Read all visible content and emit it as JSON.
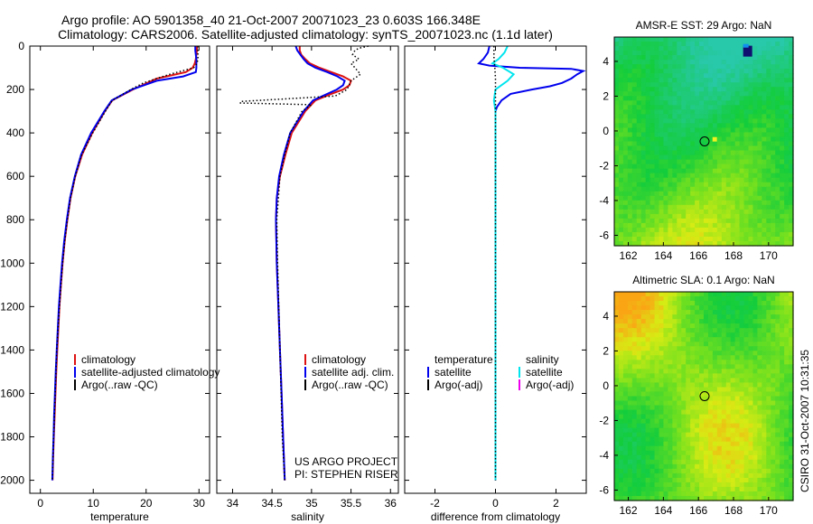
{
  "figure": {
    "title_line1": "Argo profile: AO 5901358_40 21-Oct-2007 20071023_23 0.603S 166.348E",
    "title_line2": "Climatology: CARS2006. Satellite-adjusted climatology: synTS_20071023.nc (1.1d later)",
    "credit_line1": "US ARGO PROJECT",
    "credit_line2": "PI: STEPHEN RISER",
    "timestamp": "CSIRO 31-Oct-2007 10:31:35",
    "colors": {
      "climatology": "#dd1111",
      "satellite": "#0000ee",
      "argo": "#000000",
      "satellite_cyan": "#00e5ee",
      "argo_adj_magenta": "#ee00ee"
    }
  },
  "chart_data": [
    {
      "type": "line",
      "xlabel": "temperature",
      "ylabel": "",
      "xlim": [
        -2,
        32
      ],
      "ylim": [
        2060,
        0
      ],
      "xticks": [
        "0",
        "10",
        "20",
        "30"
      ],
      "yticks": [
        "0",
        "200",
        "400",
        "600",
        "800",
        "1000",
        "1200",
        "1400",
        "1600",
        "1800",
        "2000"
      ],
      "legend": [
        "climatology",
        "satellite-adjusted climatology",
        "Argo(..raw -QC)"
      ],
      "series": [
        {
          "name": "climatology",
          "color": "#dd1111",
          "depth": [
            0,
            20,
            40,
            60,
            80,
            100,
            120,
            150,
            200,
            250,
            300,
            400,
            500,
            600,
            700,
            800,
            900,
            1000,
            1100,
            1200,
            1300,
            1400,
            1500,
            1600,
            1700,
            1800,
            1900,
            2000
          ],
          "values": [
            29.6,
            29.6,
            29.5,
            29.4,
            29.2,
            28.8,
            27.5,
            22,
            17.5,
            13.6,
            12.2,
            9.8,
            7.9,
            6.6,
            5.7,
            5.1,
            4.6,
            4.2,
            3.9,
            3.6,
            3.4,
            3.2,
            3.0,
            2.85,
            2.7,
            2.55,
            2.4,
            2.3
          ]
        },
        {
          "name": "satellite-adjusted climatology",
          "color": "#0000ee",
          "depth": [
            0,
            20,
            40,
            60,
            80,
            100,
            120,
            140,
            160,
            200,
            250,
            300,
            400,
            500,
            600,
            700,
            800,
            900,
            1000,
            1100,
            1200,
            1300,
            1400,
            1500,
            1600,
            1700,
            1800,
            1900,
            2000
          ],
          "values": [
            29.3,
            29.3,
            29.4,
            29.5,
            29.5,
            29.5,
            29.4,
            27,
            22,
            17.3,
            13.5,
            12.1,
            9.6,
            7.7,
            6.5,
            5.6,
            5.0,
            4.5,
            4.1,
            3.8,
            3.5,
            3.3,
            3.1,
            2.9,
            2.75,
            2.6,
            2.5,
            2.35,
            2.25
          ]
        },
        {
          "name": "Argo(..raw -QC)",
          "color": "#000000",
          "dotted": true,
          "depth": [
            0,
            20,
            40,
            60,
            80,
            100,
            130,
            170,
            200,
            250,
            300,
            400,
            500,
            600,
            700,
            800,
            900,
            1000,
            1200,
            1400,
            1600,
            1800,
            2000
          ],
          "values": [
            29.8,
            29.8,
            29.8,
            29.8,
            29.6,
            29.0,
            24.5,
            19.5,
            17.1,
            13.6,
            12.3,
            9.9,
            7.8,
            6.6,
            5.7,
            5.1,
            4.6,
            4.2,
            3.6,
            3.1,
            2.8,
            2.5,
            2.25
          ]
        }
      ]
    },
    {
      "type": "line",
      "xlabel": "salinity",
      "ylabel": "",
      "xlim": [
        33.8,
        36.1
      ],
      "ylim": [
        2060,
        0
      ],
      "xticks": [
        "34",
        "34.5",
        "35",
        "35.5",
        "36"
      ],
      "legend": [
        "climatology",
        "satellite adj. clim.",
        "Argo(..raw -QC)"
      ],
      "series": [
        {
          "name": "climatology",
          "color": "#dd1111",
          "depth": [
            0,
            20,
            40,
            60,
            80,
            100,
            120,
            140,
            160,
            180,
            200,
            220,
            250,
            300,
            400,
            500,
            600,
            700,
            800,
            1000,
            1200,
            1400,
            1600,
            1800,
            2000
          ],
          "values": [
            34.85,
            34.85,
            34.87,
            34.92,
            34.98,
            35.1,
            35.25,
            35.4,
            35.5,
            35.48,
            35.4,
            35.25,
            35.05,
            34.92,
            34.75,
            34.67,
            34.6,
            34.56,
            34.55,
            34.56,
            34.58,
            34.6,
            34.62,
            34.64,
            34.66
          ]
        },
        {
          "name": "satellite adj. clim.",
          "color": "#0000ee",
          "depth": [
            0,
            20,
            40,
            60,
            80,
            100,
            120,
            140,
            160,
            180,
            200,
            220,
            250,
            300,
            400,
            500,
            600,
            700,
            800,
            1000,
            1200,
            1400,
            1600,
            1800,
            2000
          ],
          "values": [
            34.8,
            34.82,
            34.86,
            34.9,
            34.95,
            35.05,
            35.2,
            35.33,
            35.42,
            35.4,
            35.32,
            35.2,
            35.02,
            34.9,
            34.73,
            34.65,
            34.59,
            34.56,
            34.55,
            34.56,
            34.58,
            34.6,
            34.62,
            34.64,
            34.66
          ]
        },
        {
          "name": "Argo(..raw -QC)",
          "color": "#000000",
          "dotted": true,
          "depth": [
            0,
            10,
            20,
            40,
            60,
            80,
            100,
            130,
            160,
            200,
            230,
            255,
            262,
            270,
            300,
            400,
            500,
            600,
            800,
            1000,
            1400,
            1800,
            2000
          ],
          "values": [
            35.72,
            35.6,
            35.55,
            35.52,
            35.6,
            35.5,
            35.55,
            35.62,
            35.5,
            35.45,
            35.3,
            34.1,
            34.1,
            35.0,
            34.88,
            34.73,
            34.66,
            34.6,
            34.56,
            34.57,
            34.6,
            34.63,
            34.66
          ]
        }
      ]
    },
    {
      "type": "line",
      "xlabel": "difference from climatology",
      "ylabel": "",
      "xlim": [
        -3,
        3
      ],
      "ylim": [
        2060,
        0
      ],
      "xticks": [
        "-2",
        "0",
        "2"
      ],
      "legend_temperature": [
        "temperature",
        "satellite",
        "Argo(-adj)"
      ],
      "legend_salinity": [
        "salinity",
        "satellite",
        "Argo(-adj)"
      ],
      "series": [
        {
          "name": "temperature satellite",
          "color": "#0000ee",
          "depth": [
            0,
            30,
            60,
            80,
            90,
            100,
            105,
            115,
            130,
            150,
            170,
            185,
            200,
            220,
            250,
            280,
            300,
            400,
            600,
            800,
            1000,
            1400,
            1800,
            2000
          ],
          "values": [
            -0.2,
            -0.25,
            -0.4,
            -0.55,
            -0.2,
            0.8,
            2.5,
            2.9,
            2.7,
            2.5,
            2.2,
            1.8,
            1.2,
            0.5,
            0.2,
            0.05,
            0.0,
            0.0,
            0.0,
            0.0,
            0.0,
            0.0,
            0.0,
            0.0
          ]
        },
        {
          "name": "salinity satellite",
          "color": "#00e5ee",
          "depth": [
            0,
            30,
            60,
            80,
            100,
            130,
            160,
            200,
            250,
            300,
            400,
            600,
            1000,
            1500,
            2000
          ],
          "values": [
            0.4,
            0.3,
            0.1,
            -0.1,
            0.25,
            0.6,
            0.4,
            0.0,
            -0.05,
            0.0,
            0.0,
            0.0,
            0.0,
            0.0,
            0.0
          ]
        },
        {
          "name": "Argo(-adj)",
          "color": "#000000",
          "dotted": true,
          "depth": [
            0,
            50,
            100,
            150,
            200,
            300,
            500,
            1000,
            2000
          ],
          "values": [
            -0.05,
            -0.05,
            -0.02,
            0.0,
            0.0,
            0.0,
            0.0,
            0.0,
            0.0
          ]
        }
      ]
    },
    {
      "type": "heatmap",
      "title": "AMSR-E SST: 29 Argo: NaN",
      "xlim": [
        161.2,
        171.4
      ],
      "ylim": [
        -6.6,
        5.4
      ],
      "xticks": [
        "162",
        "164",
        "166",
        "168",
        "170"
      ],
      "yticks": [
        "4",
        "2",
        "0",
        "-2",
        "-4",
        "-6"
      ],
      "profile_location": [
        166.35,
        -0.6
      ]
    },
    {
      "type": "heatmap",
      "title": "Altimetric SLA: 0.1 Argo: NaN",
      "xlim": [
        161.2,
        171.4
      ],
      "ylim": [
        -6.6,
        5.4
      ],
      "xticks": [
        "162",
        "164",
        "166",
        "168",
        "170"
      ],
      "yticks": [
        "4",
        "2",
        "0",
        "-2",
        "-4",
        "-6"
      ],
      "profile_location": [
        166.35,
        -0.6
      ]
    }
  ]
}
